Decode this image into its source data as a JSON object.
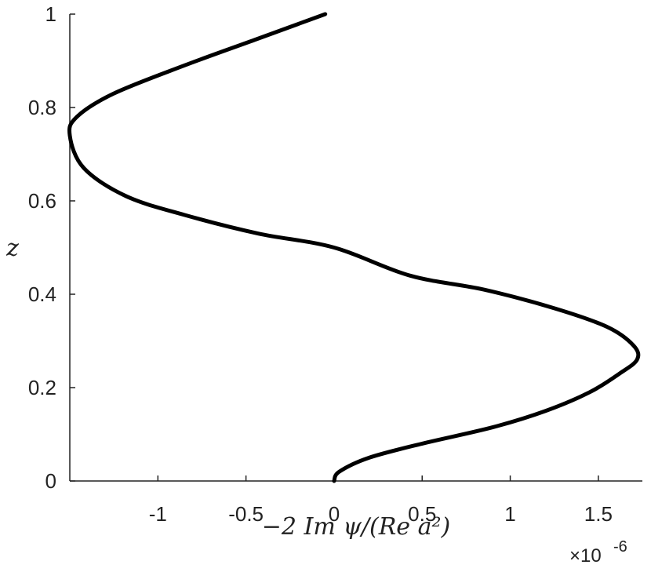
{
  "chart_data": {
    "type": "line",
    "xlabel": "−2 Im ψ/(Re a²)",
    "ylabel": "z",
    "x_exponent_label": "×10",
    "x_exponent_power": "-6",
    "xlim": [
      -1.5,
      1.75
    ],
    "ylim": [
      0,
      1
    ],
    "x_ticks": [
      -1,
      -0.5,
      0,
      0.5,
      1,
      1.5
    ],
    "x_tick_labels": [
      "-1",
      "-0.5",
      "0",
      "0.5",
      "1",
      "1.5"
    ],
    "y_ticks": [
      0,
      0.2,
      0.4,
      0.6,
      0.8,
      1
    ],
    "y_tick_labels": [
      "0",
      "0.2",
      "0.4",
      "0.6",
      "0.8",
      "1"
    ],
    "grid": false,
    "line_color": "#000000",
    "series": [
      {
        "x": [
          0,
          0.03,
          0.2,
          0.5,
          0.9,
          1.2,
          1.45,
          1.62,
          1.72,
          1.7,
          1.55,
          1.25,
          0.85,
          0.43,
          0,
          -0.43,
          -0.85,
          -1.18,
          -1.42,
          -1.5,
          -1.46,
          -1.25,
          -0.85,
          -0.45,
          -0.05
        ],
        "y": [
          0,
          0.02,
          0.05,
          0.08,
          0.115,
          0.15,
          0.19,
          0.23,
          0.26,
          0.29,
          0.33,
          0.37,
          0.41,
          0.44,
          0.5,
          0.53,
          0.57,
          0.61,
          0.67,
          0.74,
          0.78,
          0.83,
          0.89,
          0.945,
          1.0
        ]
      }
    ]
  }
}
